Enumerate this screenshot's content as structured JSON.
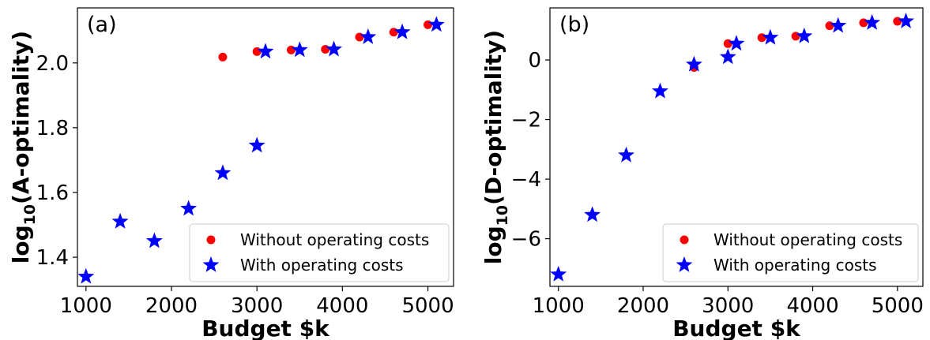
{
  "chart_data": [
    {
      "type": "scatter",
      "panel_label": "(a)",
      "xlabel": "Budget $k",
      "ylabel": {
        "prefix": "log",
        "subscript": "10",
        "suffix": "(A-optimality)"
      },
      "xlim": [
        900,
        5300
      ],
      "ylim": [
        1.31,
        2.17
      ],
      "xticks": [
        1000,
        2000,
        3000,
        4000,
        5000
      ],
      "yticks": [
        1.4,
        1.6,
        1.8,
        2.0
      ],
      "ytick_labels": [
        "1.4",
        "1.6",
        "1.8",
        "2.0"
      ],
      "legend_position": "bottom-right",
      "series": [
        {
          "name": "Without operating costs",
          "marker": "circle",
          "color": "#ff0000",
          "points": [
            [
              2600,
              2.018
            ],
            [
              3000,
              2.035
            ],
            [
              3400,
              2.04
            ],
            [
              3800,
              2.042
            ],
            [
              4200,
              2.08
            ],
            [
              4600,
              2.095
            ],
            [
              5000,
              2.118
            ]
          ]
        },
        {
          "name": "With operating costs",
          "marker": "star",
          "color": "#0000ff",
          "points": [
            [
              1000,
              1.34
            ],
            [
              1400,
              1.51
            ],
            [
              1800,
              1.45
            ],
            [
              2200,
              1.55
            ],
            [
              2600,
              1.66
            ],
            [
              3000,
              1.745
            ],
            [
              3100,
              2.035
            ],
            [
              3500,
              2.04
            ],
            [
              3900,
              2.042
            ],
            [
              4300,
              2.08
            ],
            [
              4700,
              2.095
            ],
            [
              5100,
              2.118
            ]
          ]
        }
      ]
    },
    {
      "type": "scatter",
      "panel_label": "(b)",
      "xlabel": "Budget $k",
      "ylabel": {
        "prefix": "log",
        "subscript": "10",
        "suffix": "(D-optimality)"
      },
      "xlim": [
        900,
        5300
      ],
      "ylim": [
        -7.6,
        1.75
      ],
      "xticks": [
        1000,
        2000,
        3000,
        4000,
        5000
      ],
      "yticks": [
        -6,
        -4,
        -2,
        0
      ],
      "ytick_labels": [
        "−6",
        "−4",
        "−2",
        "0"
      ],
      "legend_position": "bottom-right",
      "series": [
        {
          "name": "Without operating costs",
          "marker": "circle",
          "color": "#ff0000",
          "points": [
            [
              2600,
              -0.25
            ],
            [
              3000,
              0.55
            ],
            [
              3400,
              0.75
            ],
            [
              3800,
              0.8
            ],
            [
              4200,
              1.15
            ],
            [
              4600,
              1.25
            ],
            [
              5000,
              1.3
            ]
          ]
        },
        {
          "name": "With operating costs",
          "marker": "star",
          "color": "#0000ff",
          "points": [
            [
              1000,
              -7.2
            ],
            [
              1400,
              -5.2
            ],
            [
              1800,
              -3.2
            ],
            [
              2200,
              -1.05
            ],
            [
              2600,
              -0.15
            ],
            [
              3000,
              0.1
            ],
            [
              3100,
              0.55
            ],
            [
              3500,
              0.75
            ],
            [
              3900,
              0.8
            ],
            [
              4300,
              1.15
            ],
            [
              4700,
              1.25
            ],
            [
              5100,
              1.3
            ]
          ]
        }
      ]
    }
  ]
}
